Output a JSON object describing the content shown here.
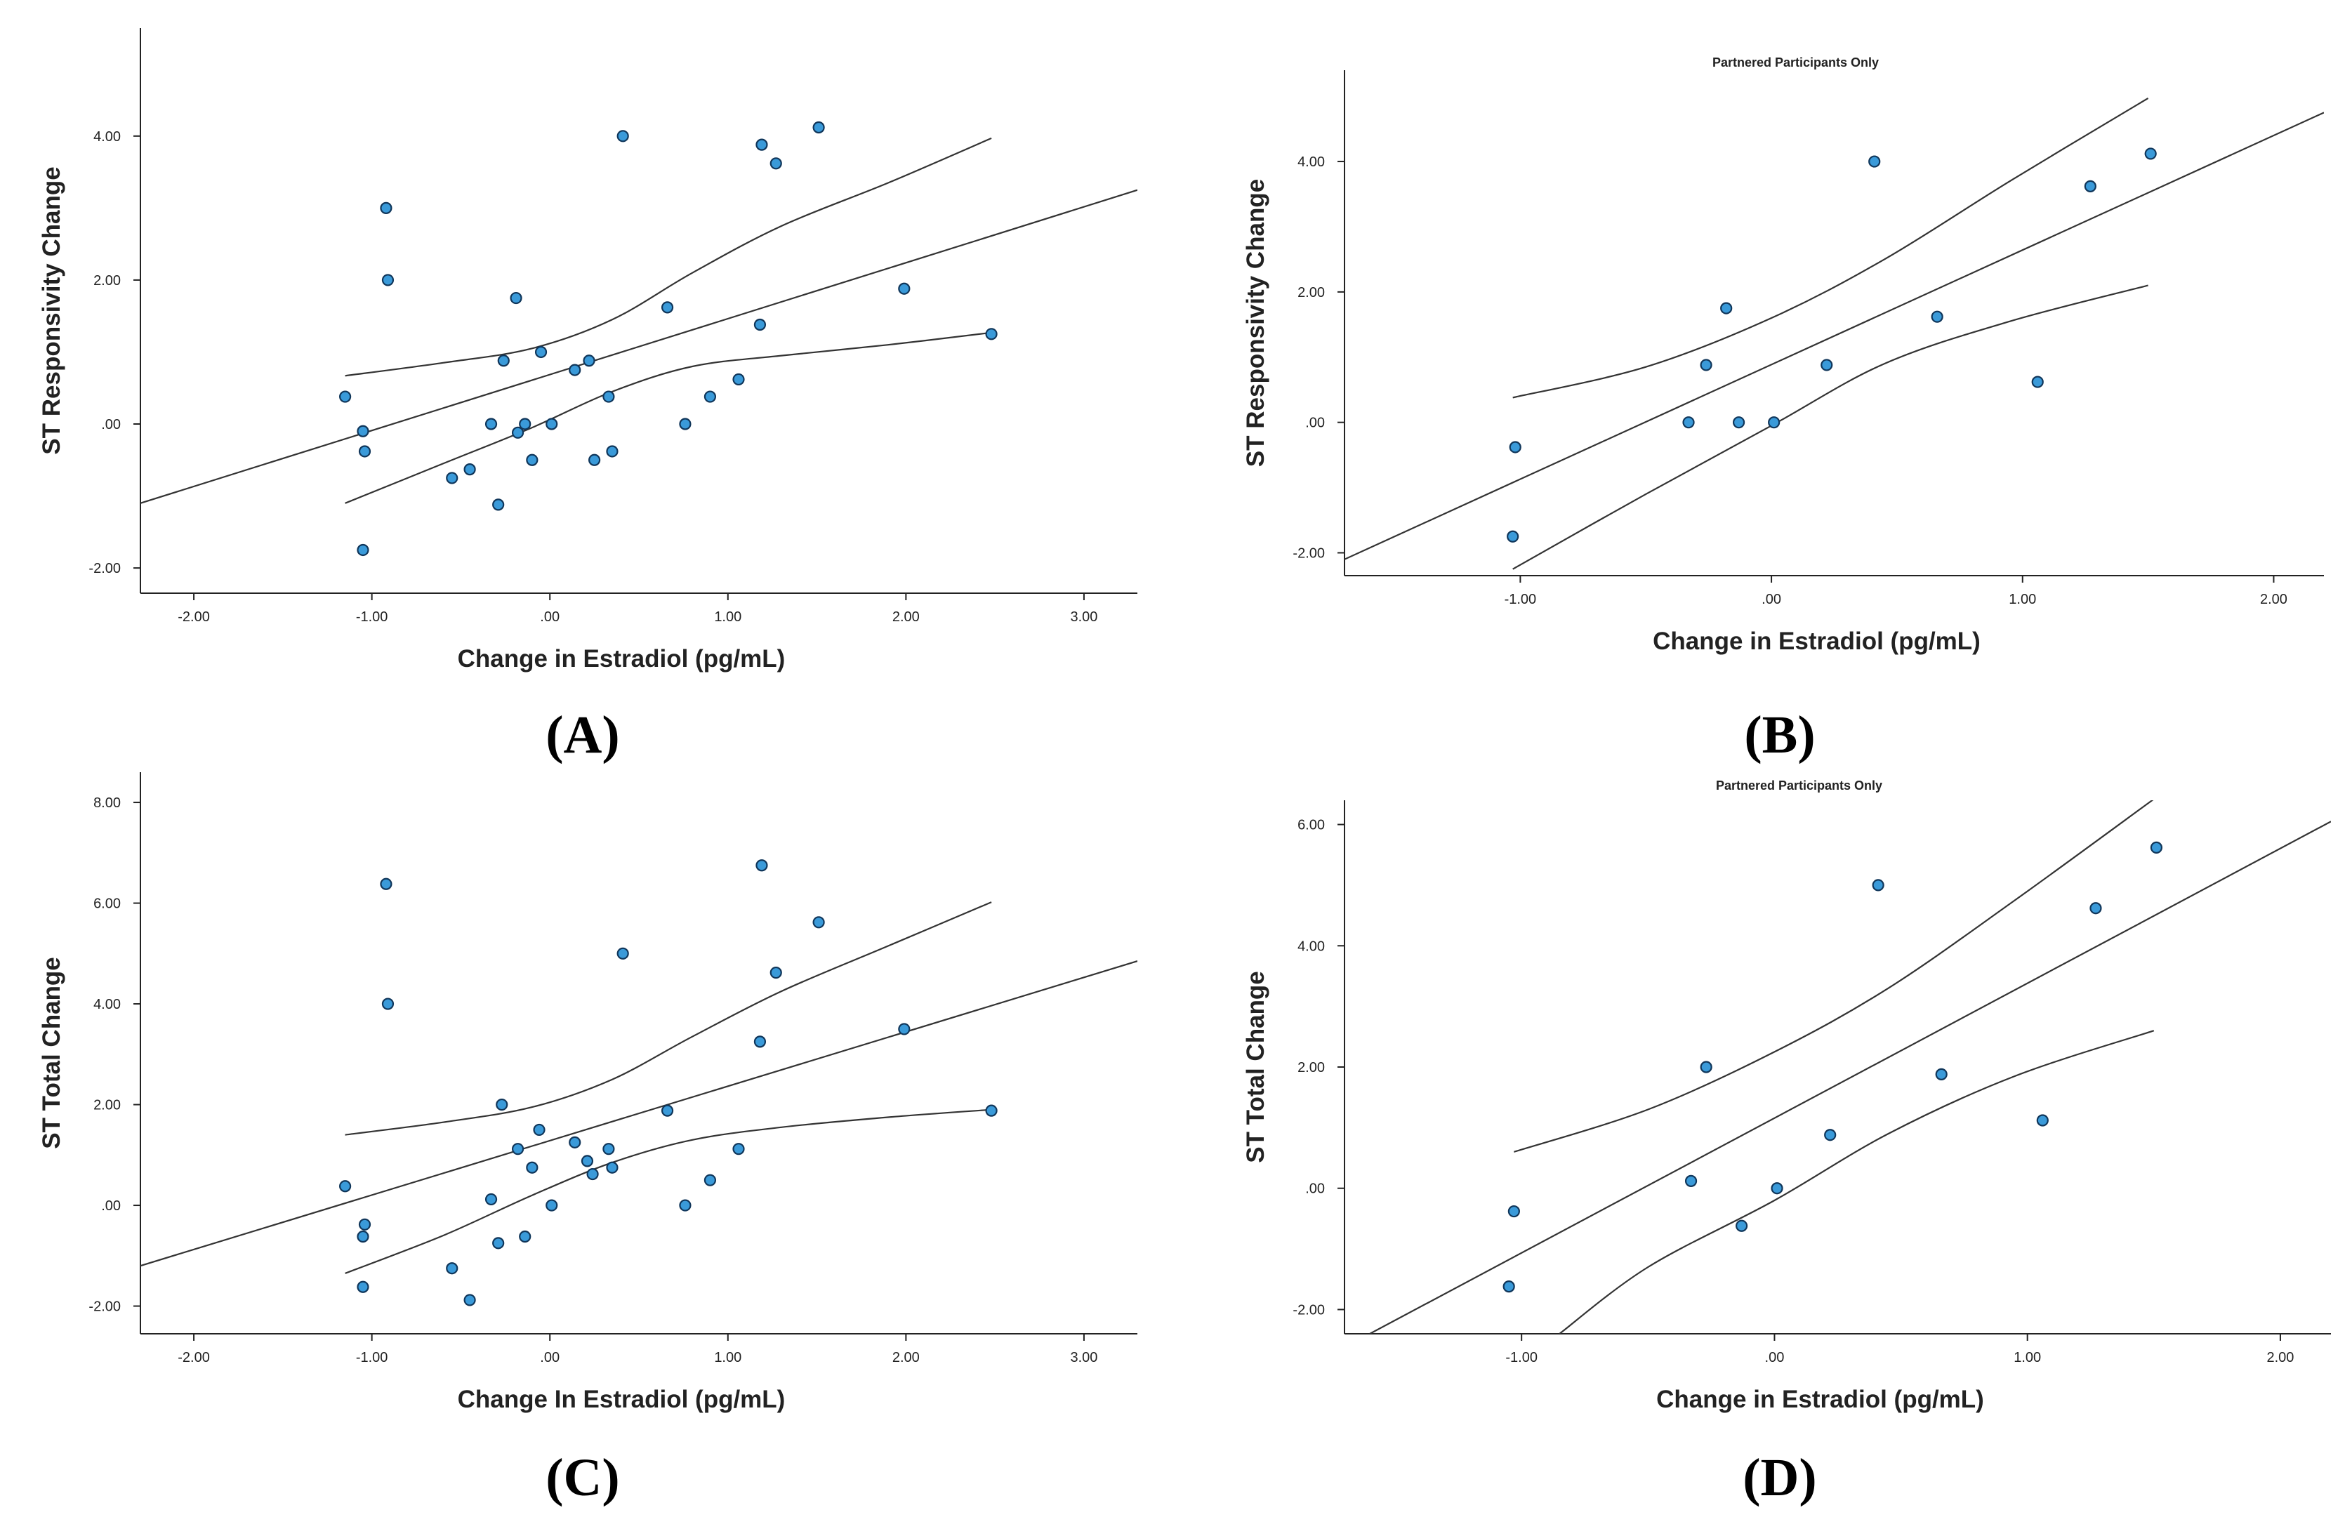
{
  "chart_data": [
    {
      "panel": "(A)",
      "type": "scatter",
      "title": "",
      "xlabel": "Change in Estradiol (pg/mL)",
      "ylabel": "ST Responsivity Change",
      "xlim": [
        -2.3,
        3.3
      ],
      "ylim": [
        -2.35,
        5.5
      ],
      "xticks": [
        -2,
        -1,
        0,
        1,
        2,
        3
      ],
      "xticklabels": [
        "-2.00",
        "-1.00",
        ".00",
        "1.00",
        "2.00",
        "3.00"
      ],
      "yticks": [
        -2,
        0,
        2,
        4
      ],
      "yticklabels": [
        "-2.00",
        ".00",
        "2.00",
        "4.00"
      ],
      "points": [
        [
          -1.15,
          0.38
        ],
        [
          -1.05,
          -0.1
        ],
        [
          -1.04,
          -0.38
        ],
        [
          -1.05,
          -1.75
        ],
        [
          -0.92,
          3.0
        ],
        [
          -0.91,
          2.0
        ],
        [
          -0.55,
          -0.75
        ],
        [
          -0.45,
          -0.63
        ],
        [
          -0.33,
          0.0
        ],
        [
          -0.29,
          -1.12
        ],
        [
          -0.26,
          0.88
        ],
        [
          -0.19,
          1.75
        ],
        [
          -0.18,
          -0.12
        ],
        [
          -0.14,
          0.0
        ],
        [
          -0.1,
          -0.5
        ],
        [
          -0.05,
          1.0
        ],
        [
          0.01,
          0.0
        ],
        [
          0.14,
          0.75
        ],
        [
          0.22,
          0.88
        ],
        [
          0.25,
          -0.5
        ],
        [
          0.33,
          0.38
        ],
        [
          0.35,
          -0.38
        ],
        [
          0.41,
          4.0
        ],
        [
          0.66,
          1.62
        ],
        [
          0.76,
          0.0
        ],
        [
          0.9,
          0.38
        ],
        [
          1.06,
          0.62
        ],
        [
          1.18,
          1.38
        ],
        [
          1.19,
          3.88
        ],
        [
          1.27,
          3.62
        ],
        [
          1.51,
          4.12
        ],
        [
          1.99,
          1.88
        ],
        [
          2.48,
          1.25
        ]
      ],
      "fit": [
        [
          -2.3,
          -1.1
        ],
        [
          3.3,
          3.25
        ]
      ],
      "ci_upper": [
        [
          -1.15,
          0.67
        ],
        [
          -0.6,
          0.85
        ],
        [
          -0.1,
          1.05
        ],
        [
          0.35,
          1.45
        ],
        [
          0.8,
          2.1
        ],
        [
          1.3,
          2.75
        ],
        [
          1.9,
          3.35
        ],
        [
          2.48,
          3.97
        ]
      ],
      "ci_lower": [
        [
          -1.15,
          -1.1
        ],
        [
          -0.6,
          -0.55
        ],
        [
          -0.1,
          -0.05
        ],
        [
          0.35,
          0.45
        ],
        [
          0.8,
          0.8
        ],
        [
          1.3,
          0.95
        ],
        [
          1.9,
          1.1
        ],
        [
          2.48,
          1.27
        ]
      ]
    },
    {
      "panel": "(B)",
      "type": "scatter",
      "title": "Partnered Participants Only",
      "xlabel": "Change in Estradiol (pg/mL)",
      "ylabel": "ST Responsivity Change",
      "xlim": [
        -1.7,
        2.2
      ],
      "ylim": [
        -2.35,
        5.4
      ],
      "xticks": [
        -1,
        0,
        1,
        2
      ],
      "xticklabels": [
        "-1.00",
        ".00",
        "1.00",
        "2.00"
      ],
      "yticks": [
        -2,
        0,
        2,
        4
      ],
      "yticklabels": [
        "-2.00",
        ".00",
        "2.00",
        "4.00"
      ],
      "points": [
        [
          -1.02,
          -0.38
        ],
        [
          -1.03,
          -1.75
        ],
        [
          -0.33,
          0.0
        ],
        [
          -0.26,
          0.88
        ],
        [
          -0.18,
          1.75
        ],
        [
          -0.13,
          0.0
        ],
        [
          0.01,
          0.0
        ],
        [
          0.22,
          0.88
        ],
        [
          0.41,
          4.0
        ],
        [
          0.66,
          1.62
        ],
        [
          1.06,
          0.62
        ],
        [
          1.27,
          3.62
        ],
        [
          1.51,
          4.12
        ]
      ],
      "fit": [
        [
          -1.7,
          -2.1
        ],
        [
          2.2,
          4.75
        ]
      ],
      "ci_upper": [
        [
          -1.03,
          0.38
        ],
        [
          -0.5,
          0.85
        ],
        [
          0.0,
          1.6
        ],
        [
          0.45,
          2.5
        ],
        [
          0.95,
          3.7
        ],
        [
          1.5,
          4.97
        ]
      ],
      "ci_lower": [
        [
          -1.03,
          -2.25
        ],
        [
          -0.5,
          -1.1
        ],
        [
          0.0,
          -0.05
        ],
        [
          0.45,
          0.9
        ],
        [
          0.95,
          1.55
        ],
        [
          1.5,
          2.1
        ]
      ]
    },
    {
      "panel": "(C)",
      "type": "scatter",
      "title": "",
      "xlabel": "Change In Estradiol (pg/mL)",
      "ylabel": "ST Total Change",
      "xlim": [
        -2.3,
        3.3
      ],
      "ylim": [
        -2.55,
        8.6
      ],
      "xticks": [
        -2,
        -1,
        0,
        1,
        2,
        3
      ],
      "xticklabels": [
        "-2.00",
        "-1.00",
        ".00",
        "1.00",
        "2.00",
        "3.00"
      ],
      "yticks": [
        -2,
        0,
        2,
        4,
        6,
        8
      ],
      "yticklabels": [
        "-2.00",
        ".00",
        "2.00",
        "4.00",
        "6.00",
        "8.00"
      ],
      "points": [
        [
          -1.15,
          0.38
        ],
        [
          -1.04,
          -0.38
        ],
        [
          -1.05,
          -0.62
        ],
        [
          -1.05,
          -1.62
        ],
        [
          -0.92,
          6.38
        ],
        [
          -0.91,
          4.0
        ],
        [
          -0.55,
          -1.25
        ],
        [
          -0.45,
          -1.88
        ],
        [
          -0.33,
          0.12
        ],
        [
          -0.29,
          -0.75
        ],
        [
          -0.27,
          2.0
        ],
        [
          -0.18,
          1.12
        ],
        [
          -0.14,
          -0.62
        ],
        [
          -0.1,
          0.75
        ],
        [
          -0.06,
          1.5
        ],
        [
          0.01,
          0.0
        ],
        [
          0.14,
          1.25
        ],
        [
          0.21,
          0.88
        ],
        [
          0.24,
          0.62
        ],
        [
          0.33,
          1.12
        ],
        [
          0.35,
          0.75
        ],
        [
          0.41,
          5.0
        ],
        [
          0.66,
          1.88
        ],
        [
          0.76,
          0.0
        ],
        [
          0.9,
          0.5
        ],
        [
          1.06,
          1.12
        ],
        [
          1.18,
          3.25
        ],
        [
          1.19,
          6.75
        ],
        [
          1.27,
          4.62
        ],
        [
          1.51,
          5.62
        ],
        [
          1.99,
          3.5
        ],
        [
          2.48,
          1.88
        ]
      ],
      "fit": [
        [
          -2.3,
          -1.2
        ],
        [
          3.3,
          4.85
        ]
      ],
      "ci_upper": [
        [
          -1.15,
          1.4
        ],
        [
          -0.6,
          1.65
        ],
        [
          -0.1,
          1.95
        ],
        [
          0.35,
          2.5
        ],
        [
          0.8,
          3.35
        ],
        [
          1.3,
          4.25
        ],
        [
          1.9,
          5.15
        ],
        [
          2.48,
          6.02
        ]
      ],
      "ci_lower": [
        [
          -1.15,
          -1.35
        ],
        [
          -0.6,
          -0.6
        ],
        [
          -0.1,
          0.2
        ],
        [
          0.35,
          0.85
        ],
        [
          0.8,
          1.3
        ],
        [
          1.3,
          1.55
        ],
        [
          1.9,
          1.75
        ],
        [
          2.48,
          1.9
        ]
      ]
    },
    {
      "panel": "(D)",
      "type": "scatter",
      "title": "Partnered Participants Only",
      "xlabel": "Change in Estradiol (pg/mL)",
      "ylabel": "ST Total Change",
      "xlim": [
        -1.7,
        2.2
      ],
      "ylim": [
        -2.4,
        6.4
      ],
      "xticks": [
        -1,
        0,
        1,
        2
      ],
      "xticklabels": [
        "-1.00",
        ".00",
        "1.00",
        "2.00"
      ],
      "yticks": [
        -2,
        0,
        2,
        4,
        6
      ],
      "yticklabels": [
        "-2.00",
        ".00",
        "2.00",
        "4.00",
        "6.00"
      ],
      "points": [
        [
          -1.03,
          -0.38
        ],
        [
          -1.05,
          -1.62
        ],
        [
          -0.33,
          0.12
        ],
        [
          -0.27,
          2.0
        ],
        [
          -0.13,
          -0.62
        ],
        [
          0.01,
          0.0
        ],
        [
          0.22,
          0.88
        ],
        [
          0.41,
          5.0
        ],
        [
          0.66,
          1.88
        ],
        [
          1.06,
          1.12
        ],
        [
          1.27,
          4.62
        ],
        [
          1.51,
          5.62
        ]
      ],
      "fit": [
        [
          -1.6,
          -2.4
        ],
        [
          2.2,
          6.05
        ]
      ],
      "ci_upper": [
        [
          -1.03,
          0.6
        ],
        [
          -0.5,
          1.3
        ],
        [
          0.0,
          2.25
        ],
        [
          0.45,
          3.3
        ],
        [
          0.95,
          4.75
        ],
        [
          1.5,
          6.42
        ]
      ],
      "ci_lower": [
        [
          -0.85,
          -2.4
        ],
        [
          -0.5,
          -1.3
        ],
        [
          0.0,
          -0.2
        ],
        [
          0.45,
          0.9
        ],
        [
          0.95,
          1.85
        ],
        [
          1.5,
          2.6
        ]
      ]
    }
  ]
}
